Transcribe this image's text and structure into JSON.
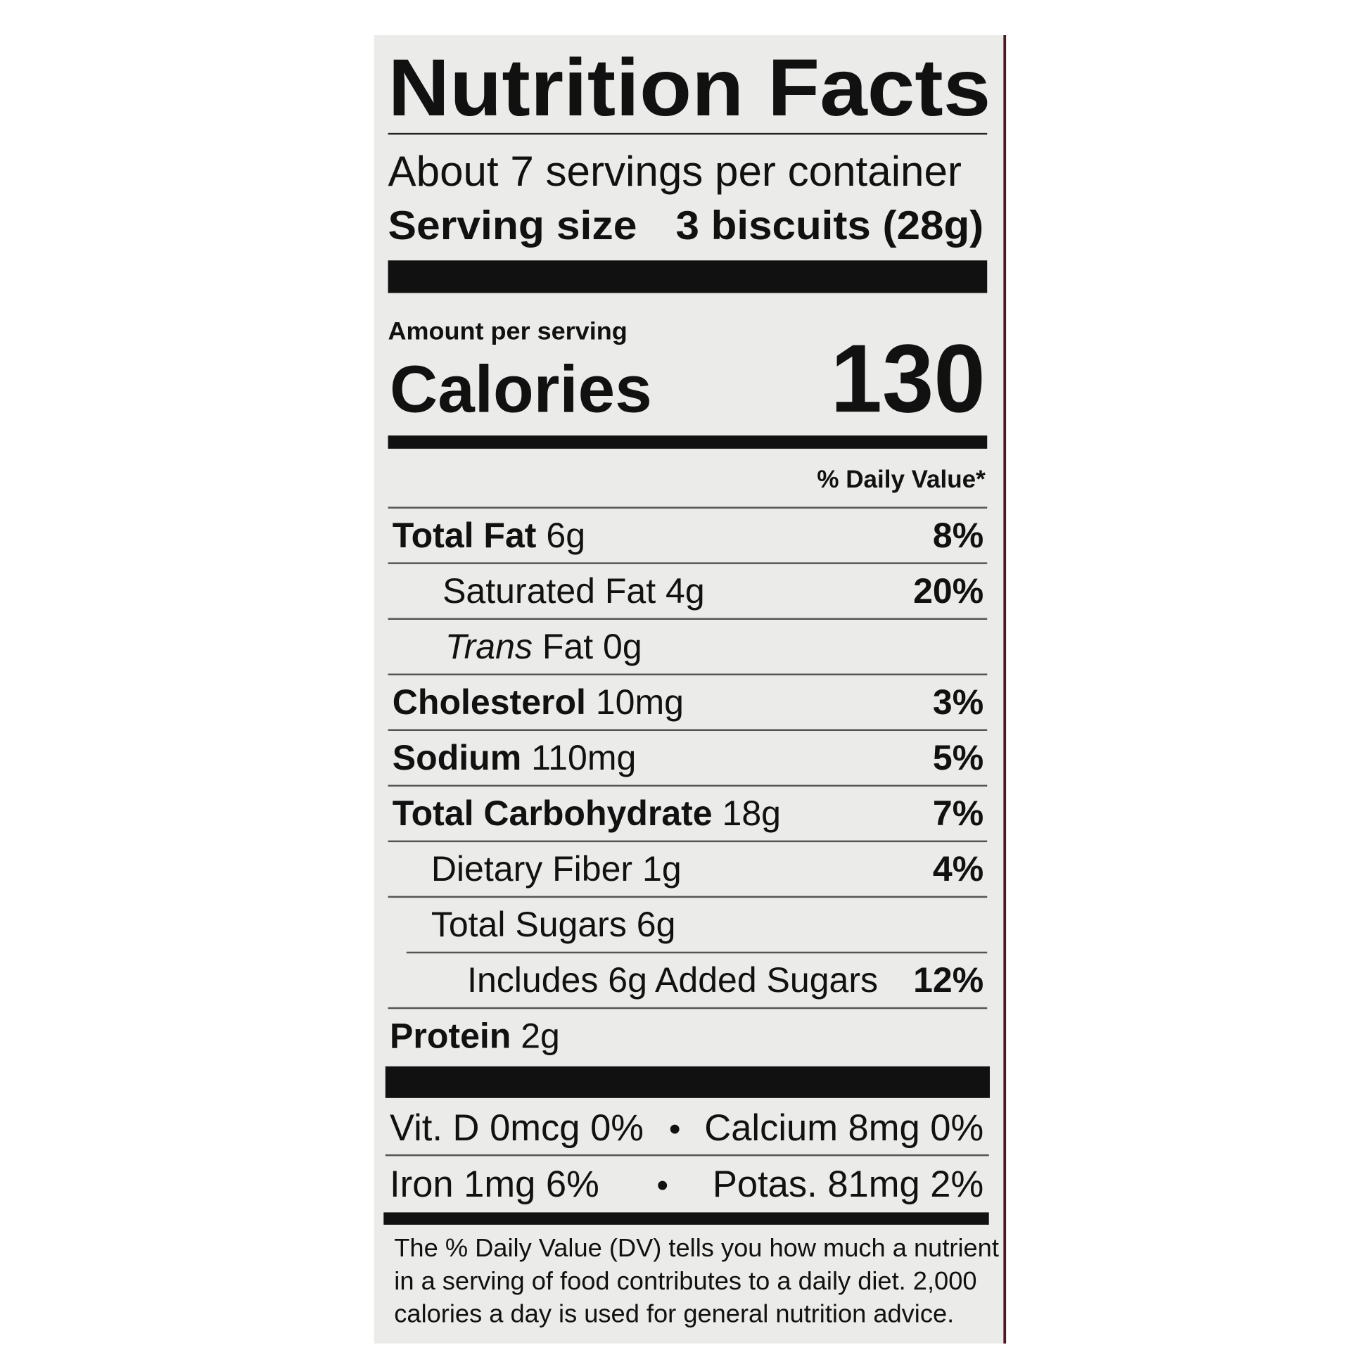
{
  "title": "Nutrition Facts",
  "servings": "About 7 servings per container",
  "serving_size": {
    "label": "Serving size",
    "value": "3 biscuits (28g)"
  },
  "amount_per_serving": "Amount per serving",
  "calories": {
    "label": "Calories",
    "value": 130
  },
  "daily_value_header": "% Daily Value*",
  "nutrients": [
    {
      "name": "Total Fat",
      "amount": "6g",
      "dv": "8%"
    },
    {
      "name": "Saturated Fat",
      "amount": "4g",
      "dv": "20%"
    },
    {
      "name_italic": "Trans",
      "name": "Fat",
      "amount": "0g"
    },
    {
      "name": "Cholesterol",
      "amount": "10mg",
      "dv": "3%"
    },
    {
      "name": "Sodium",
      "amount": "110mg",
      "dv": "5%"
    },
    {
      "name": "Total Carbohydrate",
      "amount": "18g",
      "dv": "7%"
    },
    {
      "name": "Dietary Fiber",
      "amount": "1g",
      "dv": "4%"
    },
    {
      "name": "Total Sugars",
      "amount": "6g"
    },
    {
      "name": "Includes 6g Added Sugars",
      "dv": "12%"
    },
    {
      "name": "Protein",
      "amount": "2g"
    }
  ],
  "separator": "•",
  "vitamins": [
    [
      "Vit. D 0mcg 0%",
      "Calcium 8mg 0%"
    ],
    [
      "Iron 1mg 6%",
      "Potas. 81mg 2%"
    ]
  ],
  "footnote": [
    "The % Daily Value (DV) tells you how much a nutrient",
    "in a serving of food contributes to a daily diet. 2,000",
    "calories a day is used for general nutrition advice."
  ]
}
